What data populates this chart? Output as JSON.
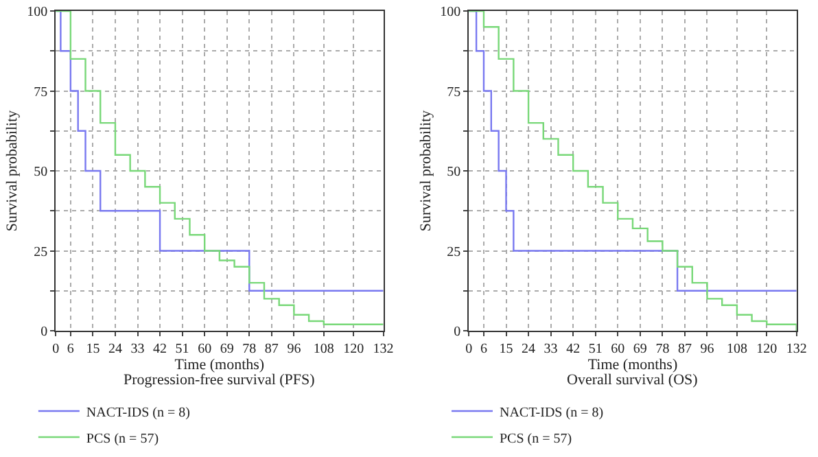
{
  "chart_data": [
    {
      "type": "step",
      "title": "Progression-free survival (PFS)",
      "xlabel": "Time (months)",
      "ylabel": "Survival probability",
      "xlim": [
        0,
        132
      ],
      "xticks": [
        0,
        6,
        15,
        24,
        33,
        42,
        51,
        60,
        69,
        78,
        87,
        96,
        108,
        120,
        132
      ],
      "ylim": [
        0,
        100
      ],
      "yticks": [
        0,
        {
          "value": 12.5,
          "label": null
        },
        25,
        {
          "value": 37.5,
          "label": null
        },
        50,
        {
          "value": 62.5,
          "label": null
        },
        75,
        {
          "value": 87.5,
          "label": null
        },
        100
      ],
      "grid": true,
      "legend": "bottom",
      "marker": "none",
      "line_style": "solid",
      "series": [
        {
          "name": "NACT-IDS (n = 8)",
          "color": "#7878f0",
          "x": [
            0,
            2,
            6,
            9,
            12,
            18,
            42,
            78,
            132
          ],
          "values": [
            100,
            87.5,
            75,
            62.5,
            50,
            37.5,
            25,
            12.5,
            12.5
          ]
        },
        {
          "name": "PCS (n = 57)",
          "color": "#78d878",
          "x": [
            0,
            6,
            12,
            18,
            24,
            30,
            36,
            42,
            48,
            54,
            60,
            66,
            72,
            78,
            84,
            90,
            96,
            102,
            108,
            132
          ],
          "values": [
            100,
            85,
            75,
            65,
            55,
            50,
            45,
            40,
            35,
            30,
            25,
            22,
            20,
            15,
            10,
            8,
            5,
            3,
            2,
            2
          ]
        }
      ]
    },
    {
      "type": "step",
      "title": "Overall survival (OS)",
      "xlabel": "Time (months)",
      "ylabel": "Survival probability",
      "xlim": [
        0,
        132
      ],
      "xticks": [
        0,
        6,
        15,
        24,
        33,
        42,
        51,
        60,
        69,
        78,
        87,
        96,
        108,
        120,
        132
      ],
      "ylim": [
        0,
        100
      ],
      "yticks": [
        0,
        {
          "value": 12.5,
          "label": null
        },
        25,
        {
          "value": 37.5,
          "label": null
        },
        50,
        {
          "value": 62.5,
          "label": null
        },
        75,
        {
          "value": 87.5,
          "label": null
        },
        100
      ],
      "grid": true,
      "legend": "bottom",
      "marker": "none",
      "line_style": "solid",
      "series": [
        {
          "name": "NACT-IDS (n = 8)",
          "color": "#7878f0",
          "x": [
            0,
            3,
            6,
            9,
            12,
            15,
            18,
            84,
            132
          ],
          "values": [
            100,
            87.5,
            75,
            62.5,
            50,
            37.5,
            25,
            12.5,
            12.5
          ]
        },
        {
          "name": "PCS (n = 57)",
          "color": "#78d878",
          "x": [
            0,
            6,
            12,
            18,
            24,
            30,
            36,
            42,
            48,
            54,
            60,
            66,
            72,
            78,
            84,
            90,
            96,
            102,
            108,
            114,
            120,
            132
          ],
          "values": [
            100,
            95,
            85,
            75,
            65,
            60,
            55,
            50,
            45,
            40,
            35,
            32,
            28,
            25,
            20,
            15,
            10,
            8,
            5,
            3,
            2,
            0
          ]
        }
      ]
    }
  ]
}
